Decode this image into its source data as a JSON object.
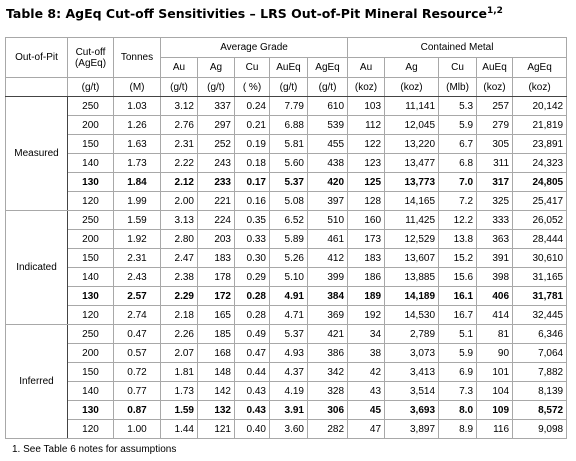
{
  "title": "Table 8: AgEq Cut-off Sensitivities – LRS Out-of-Pit Mineral Resource",
  "title_sup": "1,2",
  "table": {
    "corner": "Out-of-Pit",
    "cutoff": [
      "Cut-off",
      "(AgEq)"
    ],
    "tonnes": "Tonnes",
    "spans": [
      "Average Grade",
      "Contained Metal"
    ],
    "metals": [
      "Au",
      "Ag",
      "Cu",
      "AuEq",
      "AgEq",
      "Au",
      "Ag",
      "Cu",
      "AuEq",
      "AgEq"
    ],
    "units": [
      "(g/t)",
      "(M)",
      "(g/t)",
      "(g/t)",
      "( %)",
      "(g/t)",
      "(g/t)",
      "(koz)",
      "(koz)",
      "(Mlb)",
      "(koz)",
      "(koz)"
    ],
    "groups": [
      {
        "name": "Measured",
        "rows": [
          {
            "cells": [
              "250",
              "1.03",
              "3.12",
              "337",
              "0.24",
              "7.79",
              "610",
              "103",
              "11,141",
              "5.3",
              "257",
              "20,142"
            ]
          },
          {
            "cells": [
              "200",
              "1.26",
              "2.76",
              "297",
              "0.21",
              "6.88",
              "539",
              "112",
              "12,045",
              "5.9",
              "279",
              "21,819"
            ]
          },
          {
            "cells": [
              "150",
              "1.63",
              "2.31",
              "252",
              "0.19",
              "5.81",
              "455",
              "122",
              "13,220",
              "6.7",
              "305",
              "23,891"
            ]
          },
          {
            "cells": [
              "140",
              "1.73",
              "2.22",
              "243",
              "0.18",
              "5.60",
              "438",
              "123",
              "13,477",
              "6.8",
              "311",
              "24,323"
            ]
          },
          {
            "cells": [
              "130",
              "1.84",
              "2.12",
              "233",
              "0.17",
              "5.37",
              "420",
              "125",
              "13,773",
              "7.0",
              "317",
              "24,805"
            ],
            "bold": true
          },
          {
            "cells": [
              "120",
              "1.99",
              "2.00",
              "221",
              "0.16",
              "5.08",
              "397",
              "128",
              "14,165",
              "7.2",
              "325",
              "25,417"
            ]
          }
        ]
      },
      {
        "name": "Indicated",
        "rows": [
          {
            "cells": [
              "250",
              "1.59",
              "3.13",
              "224",
              "0.35",
              "6.52",
              "510",
              "160",
              "11,425",
              "12.2",
              "333",
              "26,052"
            ]
          },
          {
            "cells": [
              "200",
              "1.92",
              "2.80",
              "203",
              "0.33",
              "5.89",
              "461",
              "173",
              "12,529",
              "13.8",
              "363",
              "28,444"
            ]
          },
          {
            "cells": [
              "150",
              "2.31",
              "2.47",
              "183",
              "0.30",
              "5.26",
              "412",
              "183",
              "13,607",
              "15.2",
              "391",
              "30,610"
            ]
          },
          {
            "cells": [
              "140",
              "2.43",
              "2.38",
              "178",
              "0.29",
              "5.10",
              "399",
              "186",
              "13,885",
              "15.6",
              "398",
              "31,165"
            ]
          },
          {
            "cells": [
              "130",
              "2.57",
              "2.29",
              "172",
              "0.28",
              "4.91",
              "384",
              "189",
              "14,189",
              "16.1",
              "406",
              "31,781"
            ],
            "bold": true
          },
          {
            "cells": [
              "120",
              "2.74",
              "2.18",
              "165",
              "0.28",
              "4.71",
              "369",
              "192",
              "14,530",
              "16.7",
              "414",
              "32,445"
            ]
          }
        ]
      },
      {
        "name": "Inferred",
        "rows": [
          {
            "cells": [
              "250",
              "0.47",
              "2.26",
              "185",
              "0.49",
              "5.37",
              "421",
              "34",
              "2,789",
              "5.1",
              "81",
              "6,346"
            ]
          },
          {
            "cells": [
              "200",
              "0.57",
              "2.07",
              "168",
              "0.47",
              "4.93",
              "386",
              "38",
              "3,073",
              "5.9",
              "90",
              "7,064"
            ]
          },
          {
            "cells": [
              "150",
              "0.72",
              "1.81",
              "148",
              "0.44",
              "4.37",
              "342",
              "42",
              "3,413",
              "6.9",
              "101",
              "7,882"
            ]
          },
          {
            "cells": [
              "140",
              "0.77",
              "1.73",
              "142",
              "0.43",
              "4.19",
              "328",
              "43",
              "3,514",
              "7.3",
              "104",
              "8,139"
            ]
          },
          {
            "cells": [
              "130",
              "0.87",
              "1.59",
              "132",
              "0.43",
              "3.91",
              "306",
              "45",
              "3,693",
              "8.0",
              "109",
              "8,572"
            ],
            "bold": true
          },
          {
            "cells": [
              "120",
              "1.00",
              "1.44",
              "121",
              "0.40",
              "3.60",
              "282",
              "47",
              "3,897",
              "8.9",
              "116",
              "9,098"
            ]
          }
        ]
      }
    ]
  },
  "footnote": "1.  See Table 6 notes for assumptions"
}
